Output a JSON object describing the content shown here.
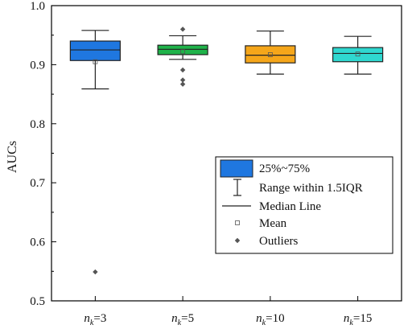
{
  "chart_data": {
    "type": "box",
    "ylabel": "AUCs",
    "xlabel": "",
    "ylim": [
      0.5,
      1.0
    ],
    "yticks": [
      "0.5",
      "0.6",
      "0.7",
      "0.8",
      "0.9",
      "1.0"
    ],
    "grid": false,
    "legend_position": "bottom-right",
    "categories": [
      {
        "base": "n",
        "sub": "k",
        "suffix": "=3"
      },
      {
        "base": "n",
        "sub": "k",
        "suffix": "=5"
      },
      {
        "base": "n",
        "sub": "k",
        "suffix": "=10"
      },
      {
        "base": "n",
        "sub": "k",
        "suffix": "=15"
      }
    ],
    "boxes": [
      {
        "color": "#1f77e0",
        "q1": 0.907,
        "median": 0.925,
        "q3": 0.94,
        "mean": 0.905,
        "whisker_low": 0.859,
        "whisker_high": 0.958,
        "outliers": [
          0.549
        ]
      },
      {
        "color": "#1fb34a",
        "q1": 0.917,
        "median": 0.926,
        "q3": 0.933,
        "mean": 0.922,
        "whisker_low": 0.909,
        "whisker_high": 0.949,
        "outliers": [
          0.96,
          0.891,
          0.874,
          0.867
        ]
      },
      {
        "color": "#f5a61a",
        "q1": 0.903,
        "median": 0.916,
        "q3": 0.932,
        "mean": 0.917,
        "whisker_low": 0.884,
        "whisker_high": 0.957,
        "outliers": []
      },
      {
        "color": "#2fd8d0",
        "q1": 0.905,
        "median": 0.919,
        "q3": 0.929,
        "mean": 0.918,
        "whisker_low": 0.884,
        "whisker_high": 0.948,
        "outliers": []
      }
    ],
    "legend": {
      "box_label": "25%~75%",
      "range_label": "Range within 1.5IQR",
      "median_label": "Median Line",
      "mean_label": "Mean",
      "outlier_label": "Outliers",
      "box_color": "#1f77e0"
    }
  }
}
